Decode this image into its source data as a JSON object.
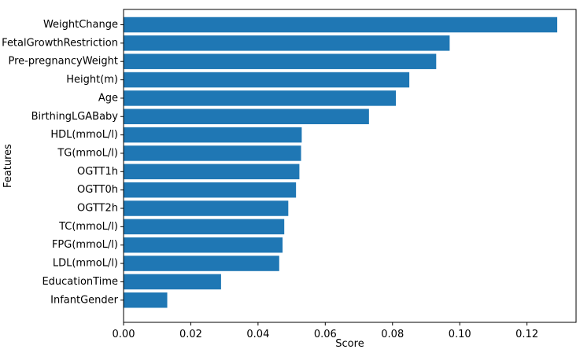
{
  "chart_data": {
    "type": "bar",
    "orientation": "horizontal",
    "categories": [
      "WeightChange",
      "FetalGrowthRestriction",
      "Pre-pregnancyWeight",
      "Height(m)",
      "Age",
      "BirthingLGABaby",
      "HDL(mmoL/l)",
      "TG(mmoL/l)",
      "OGTT1h",
      "OGTT0h",
      "OGTT2h",
      "TC(mmoL/l)",
      "FPG(mmoL/l)",
      "LDL(mmoL/l)",
      "EducationTime",
      "InfantGender"
    ],
    "values": [
      0.129,
      0.097,
      0.093,
      0.085,
      0.081,
      0.073,
      0.053,
      0.0528,
      0.0523,
      0.0513,
      0.049,
      0.0478,
      0.0473,
      0.0463,
      0.029,
      0.013
    ],
    "xlabel": "Score",
    "ylabel": "Features",
    "xlim": [
      0.0,
      0.1346
    ],
    "xticks": [
      "0.00",
      "0.02",
      "0.04",
      "0.06",
      "0.08",
      "0.10",
      "0.12"
    ],
    "xtick_values": [
      0,
      0.02,
      0.04,
      0.06,
      0.08,
      0.1,
      0.12
    ],
    "grid": false,
    "bar_color": "#1f77b4"
  }
}
